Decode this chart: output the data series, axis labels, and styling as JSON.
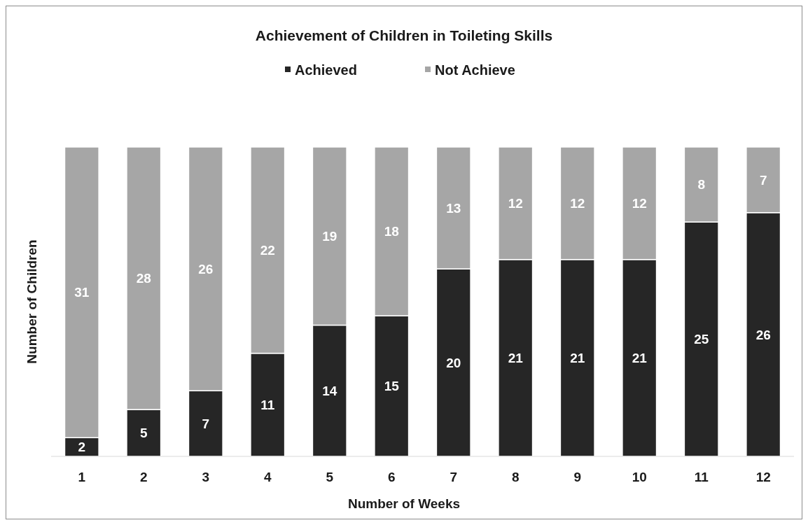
{
  "chart_data": {
    "type": "bar",
    "title": "Achievement of Children in Toileting Skills",
    "xlabel": "Number of Weeks",
    "ylabel": "Number of Children",
    "categories": [
      "1",
      "2",
      "3",
      "4",
      "5",
      "6",
      "7",
      "8",
      "9",
      "10",
      "11",
      "12"
    ],
    "series": [
      {
        "name": "Achieved",
        "color": "#262626",
        "values": [
          2,
          5,
          7,
          11,
          14,
          15,
          20,
          21,
          21,
          21,
          25,
          26
        ]
      },
      {
        "name": "Not Achieve",
        "color": "#a6a6a6",
        "values": [
          31,
          28,
          26,
          22,
          19,
          18,
          13,
          12,
          12,
          12,
          8,
          7
        ]
      }
    ],
    "stacked": true,
    "data_labels": true,
    "legend": "top",
    "ylim": [
      0,
      33
    ],
    "tick_labels": "x"
  }
}
